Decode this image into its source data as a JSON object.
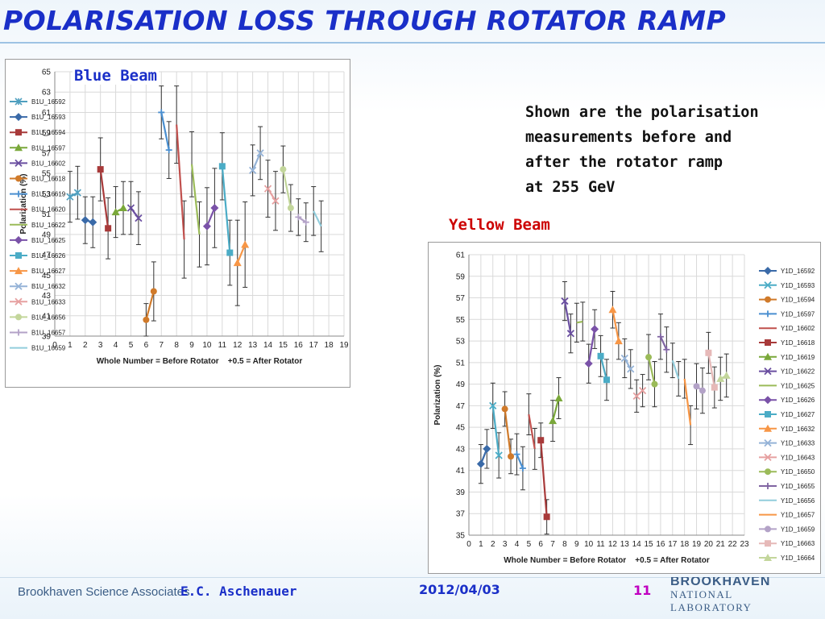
{
  "slide": {
    "title": "Polarisation loss through Rotator Ramp",
    "note": [
      "Shown are the polarisation",
      "measurements before and",
      "after the rotator ramp",
      "at 255 GeV"
    ]
  },
  "footer": {
    "organization": "Brookhaven Science Associates",
    "author": "E.C. Aschenauer",
    "date": "2012/04/03",
    "page": "11",
    "logo_top": "BROOKHAVEN",
    "logo_bottom": "NATIONAL LABORATORY"
  },
  "chart_data": [
    {
      "id": "blue",
      "type": "scatter",
      "caption": "Blue Beam",
      "caption_color": "#1a2fc8",
      "xlabel": "Whole Number = Before Rotator    +0.5 = After Rotator",
      "ylabel": "Polarization (%)",
      "xlim": [
        0,
        19
      ],
      "ylim": [
        39,
        65
      ],
      "xticks": [
        0,
        1,
        2,
        3,
        4,
        5,
        6,
        7,
        8,
        9,
        10,
        11,
        12,
        13,
        14,
        15,
        16,
        17,
        18,
        19
      ],
      "yticks": [
        39,
        41,
        43,
        45,
        47,
        49,
        51,
        53,
        55,
        57,
        59,
        61,
        63,
        65
      ],
      "grid": true,
      "legend_position": "right",
      "series": [
        {
          "name": "B1U_16592",
          "color": "#4f9fbf",
          "marker": "star",
          "x": [
            1,
            1.5
          ],
          "y": [
            52.7,
            53.1
          ],
          "err": [
            2.5,
            2.6
          ]
        },
        {
          "name": "B1U_16593",
          "color": "#3a6aa8",
          "marker": "diamond",
          "x": [
            2,
            2.5
          ],
          "y": [
            50.4,
            50.2
          ],
          "err": [
            2.3,
            2.5
          ]
        },
        {
          "name": "B1U_16594",
          "color": "#a83a3a",
          "marker": "square",
          "x": [
            3,
            3.5
          ],
          "y": [
            55.4,
            49.6
          ],
          "err": [
            3.1,
            3.0
          ]
        },
        {
          "name": "B1U_16597",
          "color": "#7aa83a",
          "marker": "triangle",
          "x": [
            4,
            4.5
          ],
          "y": [
            51.2,
            51.6
          ],
          "err": [
            2.5,
            2.6
          ]
        },
        {
          "name": "B1U_16602",
          "color": "#6a4fa0",
          "marker": "x",
          "x": [
            5,
            5.5
          ],
          "y": [
            51.6,
            50.6
          ],
          "err": [
            2.6,
            2.6
          ]
        },
        {
          "name": "B1U_16618",
          "color": "#d07a2a",
          "marker": "circle",
          "x": [
            6,
            6.5
          ],
          "y": [
            40.6,
            43.4
          ],
          "err": [
            1.6,
            2.9
          ]
        },
        {
          "name": "B1U_16619",
          "color": "#4a8fd0",
          "marker": "plus",
          "x": [
            7,
            7.5
          ],
          "y": [
            61.0,
            57.3
          ],
          "err": [
            2.6,
            2.8
          ]
        },
        {
          "name": "B1U_16620",
          "color": "#c0504d",
          "marker": "none",
          "x": [
            8,
            8.5
          ],
          "y": [
            59.8,
            48.5
          ],
          "err": [
            3.8,
            3.8
          ]
        },
        {
          "name": "B1U_16622",
          "color": "#9bbb59",
          "marker": "none",
          "x": [
            9,
            9.5
          ],
          "y": [
            55.9,
            49.0
          ],
          "err": [
            3.2,
            3.2
          ]
        },
        {
          "name": "B1U_16625",
          "color": "#7a52a8",
          "marker": "diamond",
          "x": [
            10,
            10.5
          ],
          "y": [
            49.8,
            51.6
          ],
          "err": [
            3.8,
            3.9
          ]
        },
        {
          "name": "B1U_16626",
          "color": "#4bacc6",
          "marker": "square",
          "x": [
            11,
            11.5
          ],
          "y": [
            55.7,
            47.2
          ],
          "err": [
            3.3,
            3.2
          ]
        },
        {
          "name": "B1U_16627",
          "color": "#f79646",
          "marker": "triangle",
          "x": [
            12,
            12.5
          ],
          "y": [
            46.2,
            48.0
          ],
          "err": [
            4.2,
            4.2
          ]
        },
        {
          "name": "B1U_16632",
          "color": "#95b3d7",
          "marker": "x",
          "x": [
            13,
            13.5
          ],
          "y": [
            55.3,
            57.0
          ],
          "err": [
            2.5,
            2.6
          ]
        },
        {
          "name": "B1U_16633",
          "color": "#e6a0a0",
          "marker": "x",
          "x": [
            14,
            14.5
          ],
          "y": [
            53.5,
            52.3
          ],
          "err": [
            2.8,
            2.9
          ]
        },
        {
          "name": "B1U_16656",
          "color": "#c3d69b",
          "marker": "circle",
          "x": [
            15,
            15.5
          ],
          "y": [
            55.4,
            51.6
          ],
          "err": [
            2.3,
            2.3
          ]
        },
        {
          "name": "B1U_16657",
          "color": "#b3a2c7",
          "marker": "plus",
          "x": [
            16,
            16.5
          ],
          "y": [
            50.7,
            50.2
          ],
          "err": [
            1.8,
            1.9
          ]
        },
        {
          "name": "B1U_16659",
          "color": "#92cddc",
          "marker": "none",
          "x": [
            17,
            17.5
          ],
          "y": [
            51.3,
            49.8
          ],
          "err": [
            2.4,
            2.5
          ]
        }
      ]
    },
    {
      "id": "yellow",
      "type": "scatter",
      "caption": "Yellow Beam",
      "caption_color": "#cc0000",
      "xlabel": "Whole Number = Before Rotator    +0.5 = After Rotator",
      "ylabel": "Polarization (%)",
      "xlim": [
        0,
        23
      ],
      "ylim": [
        35,
        61
      ],
      "xticks": [
        0,
        1,
        2,
        3,
        4,
        5,
        6,
        7,
        8,
        9,
        10,
        11,
        12,
        13,
        14,
        15,
        16,
        17,
        18,
        19,
        20,
        21,
        22,
        23
      ],
      "yticks": [
        35,
        37,
        39,
        41,
        43,
        45,
        47,
        49,
        51,
        53,
        55,
        57,
        59,
        61
      ],
      "grid": true,
      "legend_position": "right",
      "series": [
        {
          "name": "Y1D_16592",
          "color": "#3a6aa8",
          "marker": "diamond",
          "x": [
            1,
            1.5
          ],
          "y": [
            41.6,
            43.0
          ],
          "err": [
            1.8,
            1.8
          ]
        },
        {
          "name": "Y1D_16593",
          "color": "#4bacc6",
          "marker": "x",
          "x": [
            2,
            2.5
          ],
          "y": [
            47.0,
            42.4
          ],
          "err": [
            2.1,
            2.1
          ]
        },
        {
          "name": "Y1D_16594",
          "color": "#d07a2a",
          "marker": "circle",
          "x": [
            3,
            3.5
          ],
          "y": [
            46.7,
            42.3
          ],
          "err": [
            1.6,
            1.6
          ]
        },
        {
          "name": "Y1D_16597",
          "color": "#4a8fd0",
          "marker": "plus",
          "x": [
            4,
            4.5
          ],
          "y": [
            42.5,
            41.2
          ],
          "err": [
            1.9,
            2.0
          ]
        },
        {
          "name": "Y1D_16602",
          "color": "#c0504d",
          "marker": "none",
          "x": [
            5,
            5.5
          ],
          "y": [
            46.2,
            43.0
          ],
          "err": [
            1.9,
            1.9
          ]
        },
        {
          "name": "Y1D_16618",
          "color": "#a83a3a",
          "marker": "square",
          "x": [
            6,
            6.5
          ],
          "y": [
            43.8,
            36.7
          ],
          "err": [
            1.6,
            1.6
          ]
        },
        {
          "name": "Y1D_16619",
          "color": "#7aa83a",
          "marker": "triangle",
          "x": [
            7,
            7.5
          ],
          "y": [
            45.6,
            47.7
          ],
          "err": [
            1.9,
            1.9
          ]
        },
        {
          "name": "Y1D_16622",
          "color": "#6a4fa0",
          "marker": "x",
          "x": [
            8,
            8.5
          ],
          "y": [
            56.7,
            53.7
          ],
          "err": [
            1.8,
            1.8
          ]
        },
        {
          "name": "Y1D_16625",
          "color": "#9bbb59",
          "marker": "none",
          "x": [
            9,
            9.5
          ],
          "y": [
            54.7,
            54.8
          ],
          "err": [
            1.8,
            1.8
          ]
        },
        {
          "name": "Y1D_16626",
          "color": "#7a52a8",
          "marker": "diamond",
          "x": [
            10,
            10.5
          ],
          "y": [
            50.9,
            54.1
          ],
          "err": [
            1.8,
            1.8
          ]
        },
        {
          "name": "Y1D_16627",
          "color": "#4bacc6",
          "marker": "square",
          "x": [
            11,
            11.5
          ],
          "y": [
            51.6,
            49.4
          ],
          "err": [
            1.9,
            1.9
          ]
        },
        {
          "name": "Y1D_16632",
          "color": "#f79646",
          "marker": "triangle",
          "x": [
            12,
            12.5
          ],
          "y": [
            55.9,
            53.0
          ],
          "err": [
            1.7,
            1.7
          ]
        },
        {
          "name": "Y1D_16633",
          "color": "#95b3d7",
          "marker": "x",
          "x": [
            13,
            13.5
          ],
          "y": [
            51.4,
            50.4
          ],
          "err": [
            1.8,
            1.8
          ]
        },
        {
          "name": "Y1D_16643",
          "color": "#e6a0a0",
          "marker": "x",
          "x": [
            14,
            14.5
          ],
          "y": [
            47.9,
            48.4
          ],
          "err": [
            1.5,
            1.5
          ]
        },
        {
          "name": "Y1D_16650",
          "color": "#9bbb59",
          "marker": "circle",
          "x": [
            15,
            15.5
          ],
          "y": [
            51.5,
            49.0
          ],
          "err": [
            2.1,
            2.1
          ]
        },
        {
          "name": "Y1D_16655",
          "color": "#8064a2",
          "marker": "plus",
          "x": [
            16,
            16.5
          ],
          "y": [
            53.4,
            52.2
          ],
          "err": [
            2.1,
            2.1
          ]
        },
        {
          "name": "Y1D_16656",
          "color": "#92cddc",
          "marker": "none",
          "x": [
            17,
            17.5
          ],
          "y": [
            51.2,
            49.5
          ],
          "err": [
            1.6,
            1.6
          ]
        },
        {
          "name": "Y1D_16657",
          "color": "#f79646",
          "marker": "none",
          "x": [
            18,
            18.5
          ],
          "y": [
            49.5,
            45.2
          ],
          "err": [
            1.8,
            1.8
          ]
        },
        {
          "name": "Y1D_16659",
          "color": "#b3a2c7",
          "marker": "circle",
          "x": [
            19,
            19.5
          ],
          "y": [
            48.8,
            48.4
          ],
          "err": [
            2.1,
            2.1
          ]
        },
        {
          "name": "Y1D_16663",
          "color": "#e6b9b8",
          "marker": "square",
          "x": [
            20,
            20.5
          ],
          "y": [
            51.9,
            48.7
          ],
          "err": [
            1.9,
            1.9
          ]
        },
        {
          "name": "Y1D_16664",
          "color": "#c3d69b",
          "marker": "triangle",
          "x": [
            21,
            21.5
          ],
          "y": [
            49.5,
            49.8
          ],
          "err": [
            2.0,
            2.0
          ]
        }
      ]
    }
  ]
}
